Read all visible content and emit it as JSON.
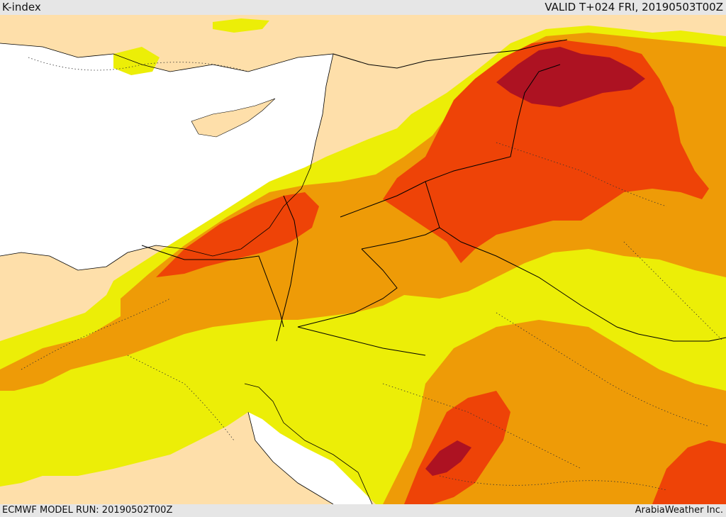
{
  "header": {
    "title": "K-index",
    "valid_time": "VALID T+024 FRI, 20190503T00Z"
  },
  "footer": {
    "model_run": "ECMWF MODEL RUN: 20190502T00Z",
    "credit": "ArabiaWeather Inc."
  },
  "colors": {
    "sea": "#ffffff",
    "land": "#fedfaa",
    "k_band_1": "#ecee07",
    "k_band_2": "#ee9b07",
    "k_band_3": "#ee4307",
    "k_band_4": "#ad1222",
    "borders": "#000000"
  }
}
